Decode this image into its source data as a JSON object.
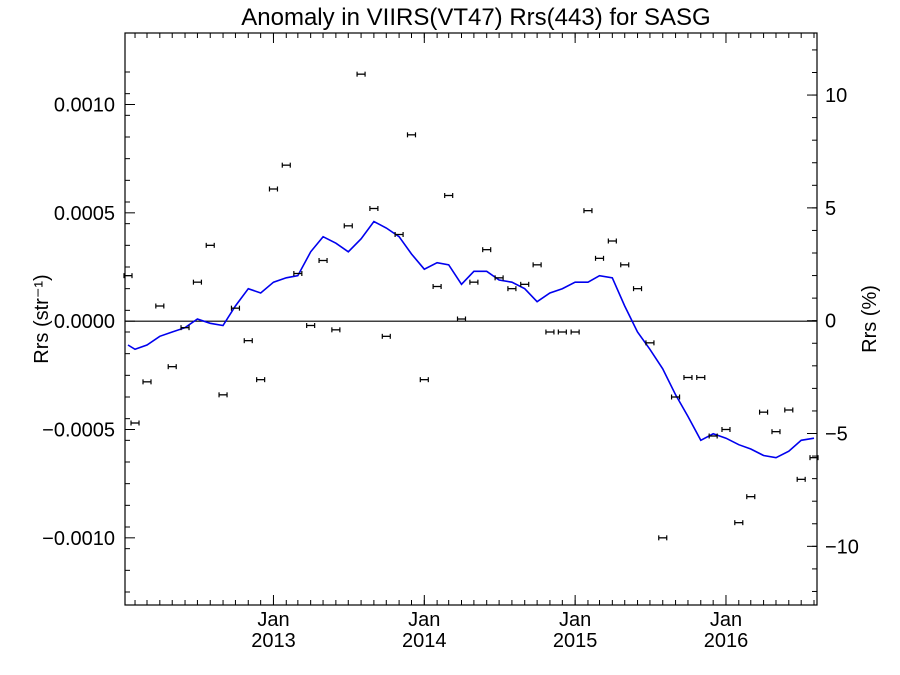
{
  "chart_data": {
    "type": "scatter",
    "title": "Anomaly in VIIRS(VT47) Rrs(443) for SASG",
    "ylabel_left": "Rrs (str⁻¹)",
    "ylabel_right": "Rrs (%)",
    "xlim": [
      "2012-01-15",
      "2016-08-01"
    ],
    "ylim": [
      -0.00131,
      0.00133
    ],
    "ylim_right": [
      -12.6,
      12.75
    ],
    "zero_line": true,
    "x_ticks": [
      {
        "date": "2013-01-01",
        "month": "Jan",
        "year": "2013"
      },
      {
        "date": "2014-01-01",
        "month": "Jan",
        "year": "2014"
      },
      {
        "date": "2015-01-01",
        "month": "Jan",
        "year": "2015"
      },
      {
        "date": "2016-01-01",
        "month": "Jan",
        "year": "2016"
      }
    ],
    "y_ticks_left": [
      {
        "value": 0.001,
        "label": "0.0010"
      },
      {
        "value": 0.0005,
        "label": "0.0005"
      },
      {
        "value": 0.0,
        "label": "0.0000"
      },
      {
        "value": -0.0005,
        "label": "−0.0005"
      },
      {
        "value": -0.001,
        "label": "−0.0010"
      }
    ],
    "y_ticks_right": [
      {
        "value": 10,
        "label": "10"
      },
      {
        "value": 5,
        "label": "5"
      },
      {
        "value": 0,
        "label": "0"
      },
      {
        "value": -5,
        "label": "−5"
      },
      {
        "value": -10,
        "label": "−10"
      }
    ],
    "series": [
      {
        "type": "scatter_errorbar",
        "color": "#000000",
        "points": [
          {
            "x": "2012-01-15",
            "y": 0.00021
          },
          {
            "x": "2012-02-01",
            "y": -0.00047
          },
          {
            "x": "2012-03-01",
            "y": -0.00028
          },
          {
            "x": "2012-04-01",
            "y": 7e-05
          },
          {
            "x": "2012-05-01",
            "y": -0.00021
          },
          {
            "x": "2012-06-01",
            "y": -3e-05
          },
          {
            "x": "2012-07-01",
            "y": 0.00018
          },
          {
            "x": "2012-08-01",
            "y": 0.00035
          },
          {
            "x": "2012-09-01",
            "y": -0.00034
          },
          {
            "x": "2012-10-01",
            "y": 6e-05
          },
          {
            "x": "2012-11-01",
            "y": -9e-05
          },
          {
            "x": "2012-12-01",
            "y": -0.00027
          },
          {
            "x": "2013-01-01",
            "y": 0.00061
          },
          {
            "x": "2013-02-01",
            "y": 0.00072
          },
          {
            "x": "2013-03-01",
            "y": 0.00022
          },
          {
            "x": "2013-04-01",
            "y": -2e-05
          },
          {
            "x": "2013-05-01",
            "y": 0.00028
          },
          {
            "x": "2013-06-01",
            "y": -4e-05
          },
          {
            "x": "2013-07-01",
            "y": 0.00044
          },
          {
            "x": "2013-08-01",
            "y": 0.00114
          },
          {
            "x": "2013-09-01",
            "y": 0.00052
          },
          {
            "x": "2013-10-01",
            "y": -7e-05
          },
          {
            "x": "2013-11-01",
            "y": 0.0004
          },
          {
            "x": "2013-12-01",
            "y": 0.00086
          },
          {
            "x": "2014-01-01",
            "y": -0.00027
          },
          {
            "x": "2014-02-01",
            "y": 0.00016
          },
          {
            "x": "2014-03-01",
            "y": 0.00058
          },
          {
            "x": "2014-04-01",
            "y": 1e-05
          },
          {
            "x": "2014-05-01",
            "y": 0.00018
          },
          {
            "x": "2014-06-01",
            "y": 0.00033
          },
          {
            "x": "2014-07-01",
            "y": 0.0002
          },
          {
            "x": "2014-08-01",
            "y": 0.00015
          },
          {
            "x": "2014-09-01",
            "y": 0.00017
          },
          {
            "x": "2014-10-01",
            "y": 0.00026
          },
          {
            "x": "2014-11-01",
            "y": -5e-05
          },
          {
            "x": "2014-12-01",
            "y": -5e-05
          },
          {
            "x": "2015-01-01",
            "y": -5e-05
          },
          {
            "x": "2015-02-01",
            "y": 0.00051
          },
          {
            "x": "2015-03-01",
            "y": 0.00029
          },
          {
            "x": "2015-04-01",
            "y": 0.00037
          },
          {
            "x": "2015-05-01",
            "y": 0.00026
          },
          {
            "x": "2015-06-01",
            "y": 0.00015
          },
          {
            "x": "2015-07-01",
            "y": -0.0001
          },
          {
            "x": "2015-08-01",
            "y": -0.001
          },
          {
            "x": "2015-09-01",
            "y": -0.00035
          },
          {
            "x": "2015-10-01",
            "y": -0.00026
          },
          {
            "x": "2015-11-01",
            "y": -0.00026
          },
          {
            "x": "2015-12-01",
            "y": -0.00053
          },
          {
            "x": "2016-01-01",
            "y": -0.0005
          },
          {
            "x": "2016-02-01",
            "y": -0.00093
          },
          {
            "x": "2016-03-01",
            "y": -0.00081
          },
          {
            "x": "2016-04-01",
            "y": -0.00042
          },
          {
            "x": "2016-05-01",
            "y": -0.00051
          },
          {
            "x": "2016-06-01",
            "y": -0.00041
          },
          {
            "x": "2016-07-01",
            "y": -0.00073
          },
          {
            "x": "2016-08-01",
            "y": -0.00063
          }
        ]
      },
      {
        "type": "line",
        "color": "#0000ee",
        "points": [
          {
            "x": "2012-01-15",
            "y": -0.00011
          },
          {
            "x": "2012-02-01",
            "y": -0.00013
          },
          {
            "x": "2012-03-01",
            "y": -0.00011
          },
          {
            "x": "2012-04-01",
            "y": -7e-05
          },
          {
            "x": "2012-05-01",
            "y": -5e-05
          },
          {
            "x": "2012-06-01",
            "y": -3e-05
          },
          {
            "x": "2012-07-01",
            "y": 1e-05
          },
          {
            "x": "2012-08-01",
            "y": -1e-05
          },
          {
            "x": "2012-09-01",
            "y": -2e-05
          },
          {
            "x": "2012-10-01",
            "y": 7e-05
          },
          {
            "x": "2012-11-01",
            "y": 0.00015
          },
          {
            "x": "2012-12-01",
            "y": 0.00013
          },
          {
            "x": "2013-01-01",
            "y": 0.00018
          },
          {
            "x": "2013-02-01",
            "y": 0.0002
          },
          {
            "x": "2013-03-01",
            "y": 0.00021
          },
          {
            "x": "2013-04-01",
            "y": 0.00032
          },
          {
            "x": "2013-05-01",
            "y": 0.00039
          },
          {
            "x": "2013-06-01",
            "y": 0.00036
          },
          {
            "x": "2013-07-01",
            "y": 0.00032
          },
          {
            "x": "2013-08-01",
            "y": 0.00038
          },
          {
            "x": "2013-09-01",
            "y": 0.00046
          },
          {
            "x": "2013-10-01",
            "y": 0.00043
          },
          {
            "x": "2013-11-01",
            "y": 0.00039
          },
          {
            "x": "2013-12-01",
            "y": 0.00031
          },
          {
            "x": "2014-01-01",
            "y": 0.00024
          },
          {
            "x": "2014-02-01",
            "y": 0.00027
          },
          {
            "x": "2014-03-01",
            "y": 0.00026
          },
          {
            "x": "2014-04-01",
            "y": 0.00017
          },
          {
            "x": "2014-05-01",
            "y": 0.00023
          },
          {
            "x": "2014-06-01",
            "y": 0.00023
          },
          {
            "x": "2014-07-01",
            "y": 0.00019
          },
          {
            "x": "2014-08-01",
            "y": 0.00018
          },
          {
            "x": "2014-09-01",
            "y": 0.00015
          },
          {
            "x": "2014-10-01",
            "y": 9e-05
          },
          {
            "x": "2014-11-01",
            "y": 0.00013
          },
          {
            "x": "2014-12-01",
            "y": 0.00015
          },
          {
            "x": "2015-01-01",
            "y": 0.00018
          },
          {
            "x": "2015-02-01",
            "y": 0.00018
          },
          {
            "x": "2015-03-01",
            "y": 0.00021
          },
          {
            "x": "2015-04-01",
            "y": 0.0002
          },
          {
            "x": "2015-05-01",
            "y": 7e-05
          },
          {
            "x": "2015-06-01",
            "y": -5e-05
          },
          {
            "x": "2015-07-01",
            "y": -0.00013
          },
          {
            "x": "2015-08-01",
            "y": -0.00022
          },
          {
            "x": "2015-09-01",
            "y": -0.00034
          },
          {
            "x": "2015-10-01",
            "y": -0.00044
          },
          {
            "x": "2015-11-01",
            "y": -0.00055
          },
          {
            "x": "2015-12-01",
            "y": -0.00052
          },
          {
            "x": "2016-01-01",
            "y": -0.00054
          },
          {
            "x": "2016-02-01",
            "y": -0.00057
          },
          {
            "x": "2016-03-01",
            "y": -0.00059
          },
          {
            "x": "2016-04-01",
            "y": -0.00062
          },
          {
            "x": "2016-05-01",
            "y": -0.00063
          },
          {
            "x": "2016-06-01",
            "y": -0.0006
          },
          {
            "x": "2016-07-01",
            "y": -0.00055
          },
          {
            "x": "2016-08-01",
            "y": -0.00054
          }
        ]
      }
    ]
  }
}
